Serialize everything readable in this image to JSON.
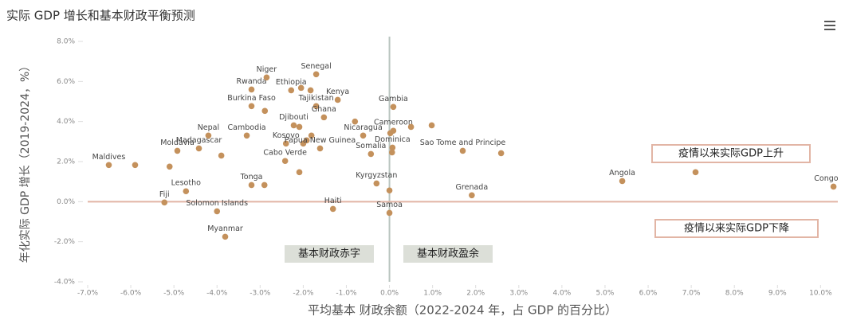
{
  "chart_data": {
    "type": "scatter",
    "title": "实际 GDP 增长和基本财政平衡预测",
    "x_label": "平均基本 财政余额（2022-2024 年，占 GDP 的百分比）",
    "y_label": "年化实际 GDP 增长（2019-2024，%）",
    "color": "#c4915c",
    "x": [
      -6.51,
      -5.9,
      -4.92,
      -5.1,
      -4.42,
      -3.9,
      -4.2,
      -3.31,
      -5.22,
      -4.72,
      -4.0,
      -3.81,
      -3.2,
      -2.9,
      -3.2,
      -2.85,
      -3.2,
      -2.89,
      -1.7,
      -2.28,
      -2.05,
      -1.83,
      -1.7,
      -1.2,
      -1.52,
      -2.22,
      -2.09,
      -2.4,
      -2.0,
      -1.92,
      -1.81,
      -1.61,
      -2.42,
      -2.09,
      -0.61,
      -0.8,
      -0.43,
      0.09,
      0.09,
      0.02,
      0.5,
      0.98,
      0.07,
      0.06,
      -0.3,
      0.0,
      0.0,
      -1.31,
      1.7,
      2.59,
      1.91,
      5.4,
      7.1,
      10.3
    ],
    "y": [
      1.83,
      1.83,
      2.54,
      1.75,
      2.66,
      2.3,
      3.3,
      3.3,
      -0.04,
      0.52,
      -0.48,
      -1.75,
      0.83,
      0.83,
      5.6,
      6.2,
      4.77,
      4.53,
      6.36,
      5.56,
      5.68,
      5.56,
      4.77,
      5.08,
      4.21,
      3.81,
      3.73,
      2.9,
      2.9,
      3.06,
      3.3,
      2.66,
      2.03,
      1.47,
      3.3,
      4.0,
      2.38,
      4.73,
      3.54,
      3.42,
      3.73,
      3.81,
      2.7,
      2.46,
      0.91,
      -0.56,
      0.56,
      -0.36,
      2.54,
      2.42,
      0.32,
      1.03,
      1.47,
      0.75
    ],
    "labels": [
      "Maldives",
      null,
      "Moldavia",
      null,
      "Madagascar",
      null,
      "Nepal",
      "Cambodia",
      "Fiji",
      "Lesotho",
      "Solomon Islands",
      "Myanmar",
      "Tonga",
      null,
      "Rwanda",
      "Niger",
      "Burkina Faso",
      null,
      "Senegal",
      "Ethiopia",
      null,
      null,
      "Tajikistan",
      "Kenya",
      "Ghana",
      "Djibouti",
      null,
      "Kosovo",
      null,
      null,
      null,
      "Papua New Guinea",
      "Cabo Verde",
      null,
      "Nicaragua",
      null,
      "Somalia",
      "Gambia",
      "Cameroon",
      null,
      null,
      null,
      "Dominica",
      null,
      "Kyrgyzstan",
      "Samoa",
      null,
      "Haiti",
      "Sao Tome and Principe",
      null,
      "Grenada",
      "Angola",
      null,
      "Congo"
    ],
    "xlim": [
      -7,
      10.4
    ],
    "ylim": [
      -4,
      8
    ],
    "xticks": [
      {
        "value": -7,
        "label": "-7.0%"
      },
      {
        "value": -6,
        "label": "-6.0%"
      },
      {
        "value": -5,
        "label": "-5.0%"
      },
      {
        "value": -4,
        "label": "-4.0%"
      },
      {
        "value": -3,
        "label": "-3.0%"
      },
      {
        "value": -2,
        "label": "-2.0%"
      },
      {
        "value": -1,
        "label": "-1.0%"
      },
      {
        "value": 0,
        "label": "0.0%"
      },
      {
        "value": 1,
        "label": "1.0%"
      },
      {
        "value": 2,
        "label": "2.0%"
      },
      {
        "value": 3,
        "label": "3.0%"
      },
      {
        "value": 4,
        "label": "4.0%"
      },
      {
        "value": 5,
        "label": "5.0%"
      },
      {
        "value": 6,
        "label": "6.0%"
      },
      {
        "value": 7,
        "label": "7.0%"
      },
      {
        "value": 8,
        "label": "8.0%"
      },
      {
        "value": 9,
        "label": "9.0%"
      },
      {
        "value": 10,
        "label": "10.0%"
      }
    ],
    "yticks": [
      {
        "value": -4,
        "label": "-4.0%"
      },
      {
        "value": -2,
        "label": "-2.0%"
      },
      {
        "value": 0,
        "label": "0.0%"
      },
      {
        "value": 2,
        "label": "2.0%"
      },
      {
        "value": 4,
        "label": "4.0%"
      },
      {
        "value": 6,
        "label": "6.0%"
      },
      {
        "value": 8,
        "label": "8.0%"
      }
    ],
    "annotations": [
      "基本财政赤字",
      "基本财政盈余",
      "疫情以来实际GDP上升",
      "疫情以来实际GDP下降"
    ]
  }
}
